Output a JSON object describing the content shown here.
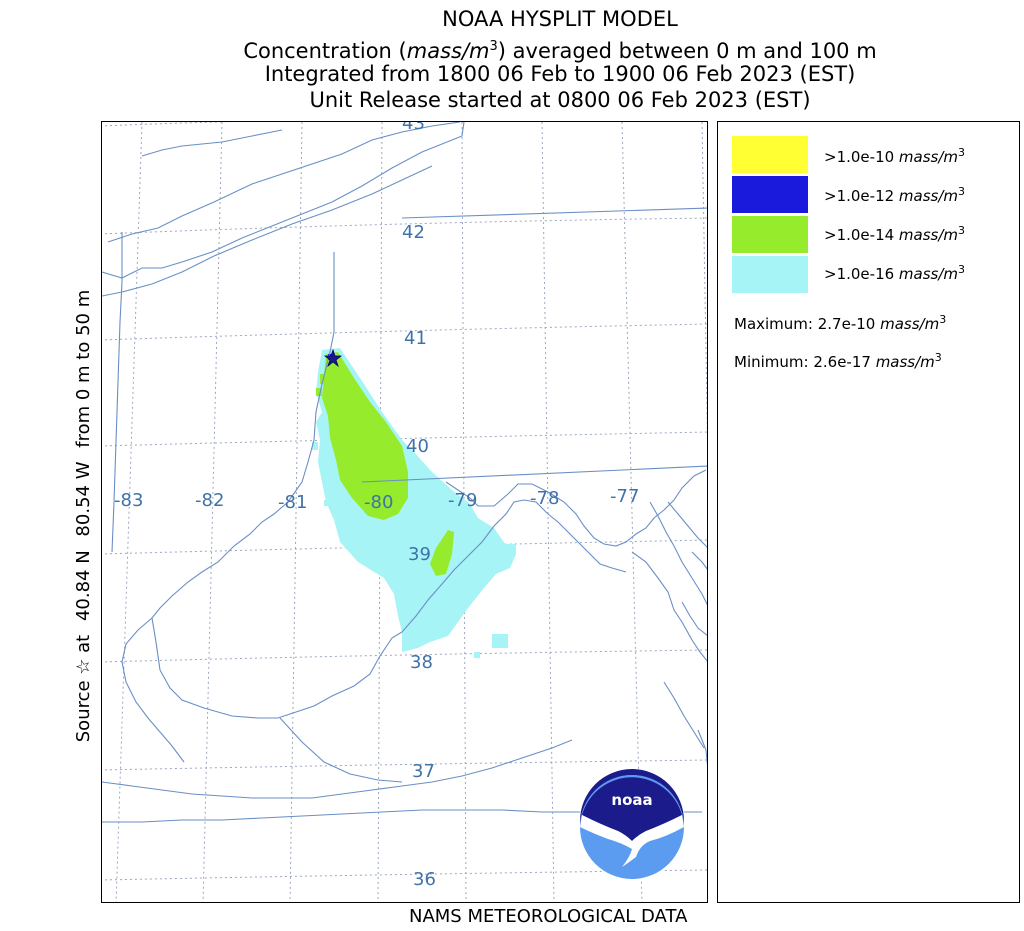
{
  "title": {
    "line1": "NOAA HYSPLIT MODEL",
    "line2_prefix": "Concentration (",
    "line2_unit": "mass/m",
    "line2_sup": "3",
    "line2_suffix": ") averaged between 0 m and 100 m",
    "line3": "Integrated from 1800 06 Feb to 1900 06 Feb 2023 (EST)",
    "line4": "Unit Release started at 0800 06 Feb 2023 (EST)"
  },
  "side_label": {
    "source": "Source ☆ at",
    "lat": "40.84 N",
    "lon": "80.54 W",
    "height": "from 0 m to 50 m"
  },
  "footer": "NAMS METEOROLOGICAL DATA",
  "map": {
    "source_lat": 40.84,
    "source_lon": -80.54,
    "latitude_labels": [
      "43",
      "42",
      "41",
      "40",
      "39",
      "38",
      "37",
      "36"
    ],
    "longitude_labels": [
      "-83",
      "-82",
      "-81",
      "-80",
      "-79",
      "-78",
      "-77"
    ],
    "grid_color": "#9aa7c0",
    "boundary_color": "#6a8fc6",
    "label_color": "#3f73a8",
    "logo_text": "noaa"
  },
  "legend": {
    "items": [
      {
        "prefix": ">1.0e-10 ",
        "unit": "mass/m",
        "sup": "3",
        "color": "#ffff33"
      },
      {
        "prefix": ">1.0e-12 ",
        "unit": "mass/m",
        "sup": "3",
        "color": "#1a1adc"
      },
      {
        "prefix": ">1.0e-14 ",
        "unit": "mass/m",
        "sup": "3",
        "color": "#96eb2c"
      },
      {
        "prefix": ">1.0e-16 ",
        "unit": "mass/m",
        "sup": "3",
        "color": "#a6f4f6"
      }
    ],
    "maximum_prefix": "Maximum: 2.7e-10 ",
    "minimum_prefix": "Minimum: 2.6e-17 ",
    "stat_unit": "mass/m",
    "stat_sup": "3"
  }
}
